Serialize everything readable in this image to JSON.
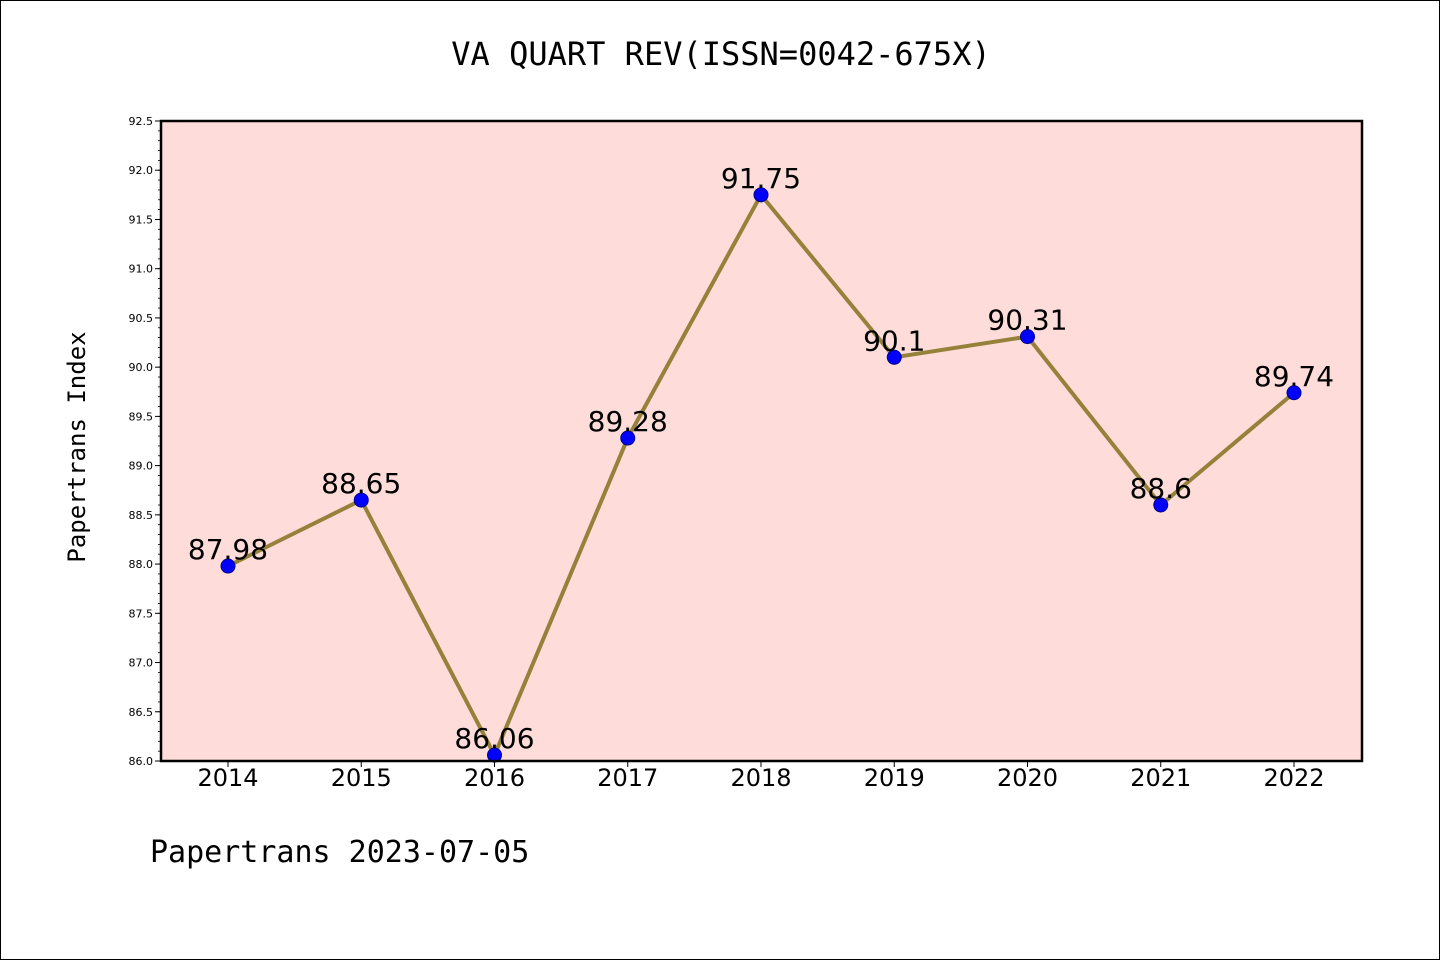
{
  "chart_data": {
    "type": "line",
    "title": "VA QUART REV(ISSN=0042-675X)",
    "xlabel": "",
    "ylabel": "Papertrans Index",
    "x": [
      "2014",
      "2015",
      "2016",
      "2017",
      "2018",
      "2019",
      "2020",
      "2021",
      "2022"
    ],
    "series": [
      {
        "values": [
          87.98,
          88.65,
          86.06,
          89.28,
          91.75,
          90.1,
          90.31,
          88.6,
          89.74
        ],
        "data_labels": [
          "87.98",
          "88.65",
          "86.06",
          "89.28",
          "91.75",
          "90.1",
          "90.31",
          "88.6",
          "89.74"
        ]
      }
    ],
    "ylim": [
      86.0,
      92.5
    ],
    "y_ticks": [
      "86.0",
      "86.5",
      "87.0",
      "87.5",
      "88.0",
      "88.5",
      "89.0",
      "89.5",
      "90.0",
      "90.5",
      "91.0",
      "91.5",
      "92.0",
      "92.5"
    ],
    "grid": false,
    "legend": "none",
    "colors": {
      "plot_background": "#fddcda",
      "line": "#958139",
      "marker": "#0000ff",
      "axes": "#000000"
    },
    "footer": "Papertrans 2023-07-05"
  }
}
